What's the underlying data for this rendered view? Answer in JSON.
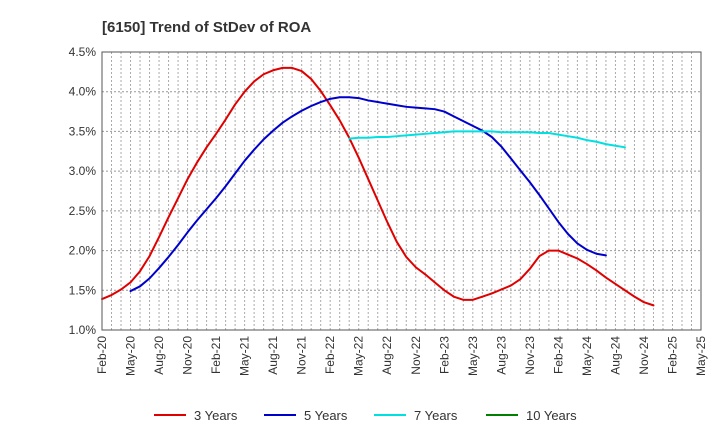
{
  "chart_data": {
    "type": "line",
    "title": "[6150]  Trend of StDev of ROA",
    "ylim": [
      1.0,
      4.5
    ],
    "y_ticks": [
      1.0,
      1.5,
      2.0,
      2.5,
      3.0,
      3.5,
      4.0,
      4.5
    ],
    "y_tick_labels": [
      "1.0%",
      "1.5%",
      "2.0%",
      "2.5%",
      "3.0%",
      "3.5%",
      "4.0%",
      "4.5%"
    ],
    "x_ticks": [
      "2020-02",
      "2020-05",
      "2020-08",
      "2020-11",
      "2021-02",
      "2021-05",
      "2021-08",
      "2021-11",
      "2022-02",
      "2022-05",
      "2022-08",
      "2022-11",
      "2023-02",
      "2023-05",
      "2023-08",
      "2023-11",
      "2024-02",
      "2024-05",
      "2024-08",
      "2024-11",
      "2025-02",
      "2025-05"
    ],
    "x_tick_labels": [
      "Feb-20",
      "May-20",
      "Aug-20",
      "Nov-20",
      "Feb-21",
      "May-21",
      "Aug-21",
      "Nov-21",
      "Feb-22",
      "May-22",
      "Aug-22",
      "Nov-22",
      "Feb-23",
      "May-23",
      "Aug-23",
      "Nov-23",
      "Feb-24",
      "May-24",
      "Aug-24",
      "Nov-24",
      "Feb-25",
      "May-25"
    ],
    "xlim": [
      "2020-02",
      "2025-05"
    ],
    "grid": true,
    "legend_position": "bottom",
    "series": [
      {
        "name": "3 Years",
        "color": "#e00000",
        "points": [
          [
            "2020-02",
            1.39
          ],
          [
            "2020-03",
            1.44
          ],
          [
            "2020-04",
            1.51
          ],
          [
            "2020-05",
            1.6
          ],
          [
            "2020-06",
            1.74
          ],
          [
            "2020-07",
            1.93
          ],
          [
            "2020-08",
            2.17
          ],
          [
            "2020-09",
            2.42
          ],
          [
            "2020-10",
            2.66
          ],
          [
            "2020-11",
            2.9
          ],
          [
            "2020-12",
            3.11
          ],
          [
            "2021-01",
            3.3
          ],
          [
            "2021-02",
            3.47
          ],
          [
            "2021-03",
            3.65
          ],
          [
            "2021-04",
            3.84
          ],
          [
            "2021-05",
            4.0
          ],
          [
            "2021-06",
            4.13
          ],
          [
            "2021-07",
            4.22
          ],
          [
            "2021-08",
            4.27
          ],
          [
            "2021-09",
            4.3
          ],
          [
            "2021-10",
            4.3
          ],
          [
            "2021-11",
            4.26
          ],
          [
            "2021-12",
            4.16
          ],
          [
            "2022-01",
            4.01
          ],
          [
            "2022-02",
            3.83
          ],
          [
            "2022-03",
            3.64
          ],
          [
            "2022-04",
            3.42
          ],
          [
            "2022-05",
            3.17
          ],
          [
            "2022-06",
            2.9
          ],
          [
            "2022-07",
            2.63
          ],
          [
            "2022-08",
            2.36
          ],
          [
            "2022-09",
            2.11
          ],
          [
            "2022-10",
            1.92
          ],
          [
            "2022-11",
            1.79
          ],
          [
            "2022-12",
            1.7
          ],
          [
            "2023-01",
            1.6
          ],
          [
            "2023-02",
            1.5
          ],
          [
            "2023-03",
            1.42
          ],
          [
            "2023-04",
            1.38
          ],
          [
            "2023-05",
            1.38
          ],
          [
            "2023-06",
            1.42
          ],
          [
            "2023-07",
            1.46
          ],
          [
            "2023-08",
            1.51
          ],
          [
            "2023-09",
            1.56
          ],
          [
            "2023-10",
            1.64
          ],
          [
            "2023-11",
            1.77
          ],
          [
            "2023-12",
            1.93
          ],
          [
            "2024-01",
            2.0
          ],
          [
            "2024-02",
            2.0
          ],
          [
            "2024-03",
            1.95
          ],
          [
            "2024-04",
            1.9
          ],
          [
            "2024-05",
            1.83
          ],
          [
            "2024-06",
            1.75
          ],
          [
            "2024-07",
            1.66
          ],
          [
            "2024-08",
            1.58
          ],
          [
            "2024-09",
            1.5
          ],
          [
            "2024-10",
            1.42
          ],
          [
            "2024-11",
            1.35
          ],
          [
            "2024-12",
            1.31
          ]
        ]
      },
      {
        "name": "5 Years",
        "color": "#0000cc",
        "points": [
          [
            "2020-05",
            1.49
          ],
          [
            "2020-06",
            1.55
          ],
          [
            "2020-07",
            1.65
          ],
          [
            "2020-08",
            1.78
          ],
          [
            "2020-09",
            1.92
          ],
          [
            "2020-10",
            2.07
          ],
          [
            "2020-11",
            2.23
          ],
          [
            "2020-12",
            2.38
          ],
          [
            "2021-01",
            2.52
          ],
          [
            "2021-02",
            2.66
          ],
          [
            "2021-03",
            2.81
          ],
          [
            "2021-04",
            2.97
          ],
          [
            "2021-05",
            3.13
          ],
          [
            "2021-06",
            3.27
          ],
          [
            "2021-07",
            3.4
          ],
          [
            "2021-08",
            3.51
          ],
          [
            "2021-09",
            3.61
          ],
          [
            "2021-10",
            3.69
          ],
          [
            "2021-11",
            3.76
          ],
          [
            "2021-12",
            3.82
          ],
          [
            "2022-01",
            3.87
          ],
          [
            "2022-02",
            3.91
          ],
          [
            "2022-03",
            3.93
          ],
          [
            "2022-04",
            3.93
          ],
          [
            "2022-05",
            3.92
          ],
          [
            "2022-06",
            3.89
          ],
          [
            "2022-07",
            3.87
          ],
          [
            "2022-08",
            3.85
          ],
          [
            "2022-09",
            3.83
          ],
          [
            "2022-10",
            3.81
          ],
          [
            "2022-11",
            3.8
          ],
          [
            "2022-12",
            3.79
          ],
          [
            "2023-01",
            3.78
          ],
          [
            "2023-02",
            3.75
          ],
          [
            "2023-03",
            3.69
          ],
          [
            "2023-04",
            3.63
          ],
          [
            "2023-05",
            3.57
          ],
          [
            "2023-06",
            3.51
          ],
          [
            "2023-07",
            3.43
          ],
          [
            "2023-08",
            3.31
          ],
          [
            "2023-09",
            3.16
          ],
          [
            "2023-10",
            3.01
          ],
          [
            "2023-11",
            2.86
          ],
          [
            "2023-12",
            2.7
          ],
          [
            "2024-01",
            2.53
          ],
          [
            "2024-02",
            2.36
          ],
          [
            "2024-03",
            2.21
          ],
          [
            "2024-04",
            2.09
          ],
          [
            "2024-05",
            2.01
          ],
          [
            "2024-06",
            1.96
          ],
          [
            "2024-07",
            1.94
          ]
        ]
      },
      {
        "name": "7 Years",
        "color": "#00e0e0",
        "points": [
          [
            "2022-04",
            3.41
          ],
          [
            "2022-05",
            3.42
          ],
          [
            "2022-06",
            3.42
          ],
          [
            "2022-07",
            3.43
          ],
          [
            "2022-08",
            3.43
          ],
          [
            "2022-09",
            3.44
          ],
          [
            "2022-10",
            3.45
          ],
          [
            "2022-11",
            3.46
          ],
          [
            "2022-12",
            3.47
          ],
          [
            "2023-01",
            3.48
          ],
          [
            "2023-02",
            3.49
          ],
          [
            "2023-03",
            3.5
          ],
          [
            "2023-04",
            3.5
          ],
          [
            "2023-05",
            3.5
          ],
          [
            "2023-06",
            3.5
          ],
          [
            "2023-07",
            3.5
          ],
          [
            "2023-08",
            3.49
          ],
          [
            "2023-09",
            3.49
          ],
          [
            "2023-10",
            3.49
          ],
          [
            "2023-11",
            3.49
          ],
          [
            "2023-12",
            3.48
          ],
          [
            "2024-01",
            3.48
          ],
          [
            "2024-02",
            3.46
          ],
          [
            "2024-03",
            3.44
          ],
          [
            "2024-04",
            3.42
          ],
          [
            "2024-05",
            3.39
          ],
          [
            "2024-06",
            3.37
          ],
          [
            "2024-07",
            3.34
          ],
          [
            "2024-08",
            3.32
          ],
          [
            "2024-09",
            3.3
          ]
        ]
      },
      {
        "name": "10 Years",
        "color": "#008000",
        "points": []
      }
    ]
  }
}
